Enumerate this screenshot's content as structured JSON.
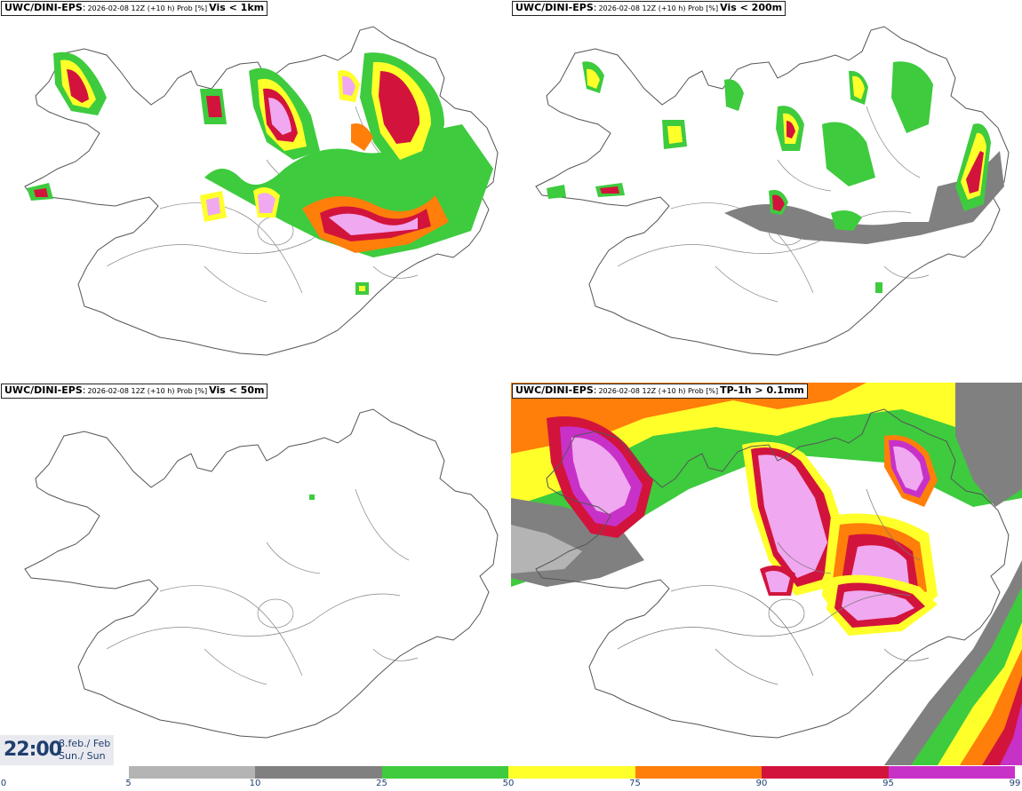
{
  "panels": [
    {
      "model": "UWC/DINI-EPS",
      "info": "2026-02-08 12Z (+10 h) Prob [%]",
      "field": "Vis < 1km"
    },
    {
      "model": "UWC/DINI-EPS",
      "info": "2026-02-08 12Z (+10 h) Prob [%]",
      "field": "Vis < 200m"
    },
    {
      "model": "UWC/DINI-EPS",
      "info": "2026-02-08 12Z (+10 h) Prob [%]",
      "field": "Vis < 50m"
    },
    {
      "model": "UWC/DINI-EPS",
      "info": "2026-02-08 12Z (+10 h) Prob [%]",
      "field": "TP-1h > 0.1mm"
    }
  ],
  "valid": {
    "time": "22:00",
    "date_line1": "8.feb./ Feb",
    "date_line2": "Sun./ Sun"
  },
  "legend": {
    "ticks": [
      "0",
      "5",
      "10",
      "25",
      "50",
      "75",
      "90",
      "95",
      "99"
    ],
    "colors": [
      "#ffffff",
      "#b4b4b4",
      "#808080",
      "#3ecb3e",
      "#ffff2a",
      "#ff7f0a",
      "#d2143c",
      "#c831c8",
      "#f0a8f0"
    ]
  },
  "icons": [
    "iceland-coastline",
    "probability-blob",
    "colorbar"
  ]
}
